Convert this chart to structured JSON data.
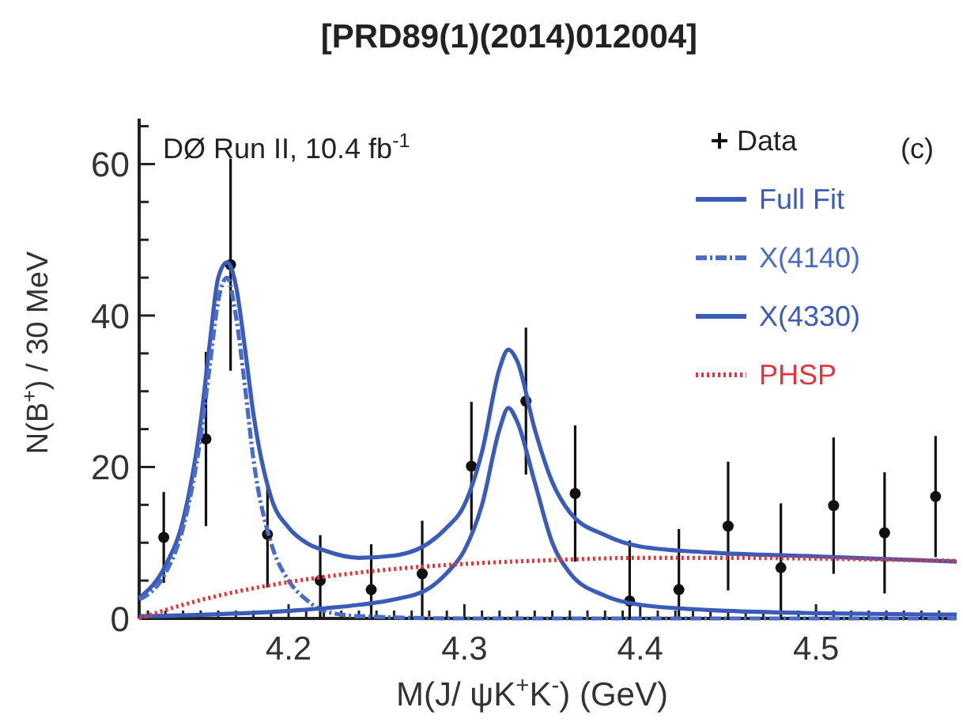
{
  "chart_data": {
    "type": "line",
    "title": "[PRD89(1)(2014)012004]",
    "xlabel": "M(J/ ψK$^{+}$K$^{-}$) (GeV)",
    "ylabel": "N(B$^{+}$) / 30 MeV",
    "annotations": [
      "DØ Run II, 10.4 fb$^{-1}$",
      "(c)"
    ],
    "xlim": [
      4.115,
      4.58
    ],
    "ylim": [
      0,
      66
    ],
    "xticks": [
      {
        "value": 4.12,
        "label": null
      },
      {
        "value": 4.13,
        "label": null
      },
      {
        "value": 4.14,
        "label": null
      },
      {
        "value": 4.15,
        "label": null
      },
      {
        "value": 4.16,
        "label": null
      },
      {
        "value": 4.17,
        "label": null
      },
      {
        "value": 4.18,
        "label": null
      },
      {
        "value": 4.19,
        "label": null
      },
      {
        "value": 4.2,
        "label": "4.2"
      },
      {
        "value": 4.21,
        "label": null
      },
      {
        "value": 4.22,
        "label": null
      },
      {
        "value": 4.23,
        "label": null
      },
      {
        "value": 4.24,
        "label": null
      },
      {
        "value": 4.25,
        "label": null
      },
      {
        "value": 4.26,
        "label": null
      },
      {
        "value": 4.27,
        "label": null
      },
      {
        "value": 4.28,
        "label": null
      },
      {
        "value": 4.29,
        "label": null
      },
      {
        "value": 4.3,
        "label": "4.3"
      },
      {
        "value": 4.31,
        "label": null
      },
      {
        "value": 4.32,
        "label": null
      },
      {
        "value": 4.33,
        "label": null
      },
      {
        "value": 4.34,
        "label": null
      },
      {
        "value": 4.35,
        "label": null
      },
      {
        "value": 4.36,
        "label": null
      },
      {
        "value": 4.37,
        "label": null
      },
      {
        "value": 4.38,
        "label": null
      },
      {
        "value": 4.39,
        "label": null
      },
      {
        "value": 4.4,
        "label": "4.4"
      },
      {
        "value": 4.41,
        "label": null
      },
      {
        "value": 4.42,
        "label": null
      },
      {
        "value": 4.43,
        "label": null
      },
      {
        "value": 4.44,
        "label": null
      },
      {
        "value": 4.45,
        "label": null
      },
      {
        "value": 4.46,
        "label": null
      },
      {
        "value": 4.47,
        "label": null
      },
      {
        "value": 4.48,
        "label": null
      },
      {
        "value": 4.49,
        "label": null
      },
      {
        "value": 4.5,
        "label": "4.5"
      },
      {
        "value": 4.51,
        "label": null
      },
      {
        "value": 4.52,
        "label": null
      },
      {
        "value": 4.53,
        "label": null
      },
      {
        "value": 4.54,
        "label": null
      },
      {
        "value": 4.55,
        "label": null
      },
      {
        "value": 4.56,
        "label": null
      },
      {
        "value": 4.57,
        "label": null
      }
    ],
    "yticks": [
      0,
      {
        "value": 5,
        "label": null
      },
      {
        "value": 10,
        "label": null
      },
      {
        "value": 15,
        "label": null
      },
      20,
      {
        "value": 25,
        "label": null
      },
      {
        "value": 30,
        "label": null
      },
      {
        "value": 35,
        "label": null
      },
      40,
      {
        "value": 45,
        "label": null
      },
      {
        "value": 50,
        "label": null
      },
      {
        "value": 55,
        "label": null
      },
      60,
      {
        "value": 65,
        "label": null
      }
    ],
    "grid": false,
    "legend": "top right",
    "series": [
      {
        "name": "Data",
        "type": "scatter",
        "marker": "circle",
        "color": "#111111",
        "x": [
          4.129,
          4.153,
          4.167,
          4.188,
          4.218,
          4.247,
          4.276,
          4.304,
          4.335,
          4.363,
          4.394,
          4.422,
          4.45,
          4.48,
          4.51,
          4.539,
          4.568
        ],
        "values": [
          10.7,
          23.7,
          46.7,
          11.1,
          5,
          3.8,
          5.9,
          20.1,
          28.7,
          16.5,
          2.3,
          3.8,
          12.2,
          6.7,
          14.9,
          11.3,
          16.1
        ],
        "errors": [
          6,
          11.5,
          14,
          7,
          [
            0,
            11
          ],
          [
            0,
            9.8
          ],
          [
            0,
            12.9
          ],
          8.5,
          9.7,
          9,
          [
            0,
            10.3
          ],
          [
            0,
            11.8
          ],
          8.5,
          [
            0,
            15.2
          ],
          9,
          8,
          8
        ]
      },
      {
        "name": "Full Fit",
        "line_style": "solid",
        "color": "#3a5cb8",
        "x": [
          4.115,
          4.13,
          4.14,
          4.15,
          4.155,
          4.16,
          4.165,
          4.17,
          4.175,
          4.18,
          4.19,
          4.2,
          4.21,
          4.22,
          4.24,
          4.26,
          4.28,
          4.29,
          4.3,
          4.31,
          4.32,
          4.325,
          4.33,
          4.34,
          4.35,
          4.36,
          4.38,
          4.4,
          4.44,
          4.5,
          4.58
        ],
        "values": [
          2.7,
          7,
          13,
          26,
          36,
          45,
          47,
          44,
          36,
          27,
          16,
          12,
          10,
          9,
          8,
          8.3,
          10,
          12,
          15,
          22,
          33,
          35.5,
          34,
          25,
          18,
          14,
          11,
          9.5,
          8.7,
          8.2,
          7.5
        ]
      },
      {
        "name": "X(4140)",
        "line_style": "dashed",
        "color": "#4a6cc8",
        "x": [
          4.115,
          4.13,
          4.14,
          4.15,
          4.155,
          4.16,
          4.165,
          4.17,
          4.175,
          4.18,
          4.19,
          4.2,
          4.21,
          4.22,
          4.24,
          4.3,
          4.58
        ],
        "values": [
          2.5,
          6,
          12,
          24,
          33,
          42,
          45,
          40,
          31,
          21,
          10,
          5,
          2.5,
          1,
          0.3,
          0,
          0
        ]
      },
      {
        "name": "X(4330)",
        "line_style": "solid",
        "color": "#3a5cb8",
        "x": [
          4.115,
          4.2,
          4.24,
          4.26,
          4.28,
          4.29,
          4.3,
          4.31,
          4.32,
          4.325,
          4.33,
          4.34,
          4.35,
          4.36,
          4.38,
          4.4,
          4.45,
          4.5,
          4.58
        ],
        "values": [
          0.3,
          1,
          1.8,
          2.5,
          4,
          6,
          9,
          15,
          25,
          27.8,
          26,
          18,
          10,
          6,
          3,
          1.8,
          1,
          0.7,
          0.5
        ]
      },
      {
        "name": "PHSP",
        "line_style": "dotted",
        "color": "#e8333a",
        "x": [
          4.115,
          4.14,
          4.16,
          4.2,
          4.25,
          4.3,
          4.35,
          4.4,
          4.45,
          4.5,
          4.58
        ],
        "values": [
          0,
          1.8,
          3,
          4.8,
          6.3,
          7.2,
          7.7,
          8,
          8,
          7.9,
          7.6
        ]
      }
    ]
  }
}
